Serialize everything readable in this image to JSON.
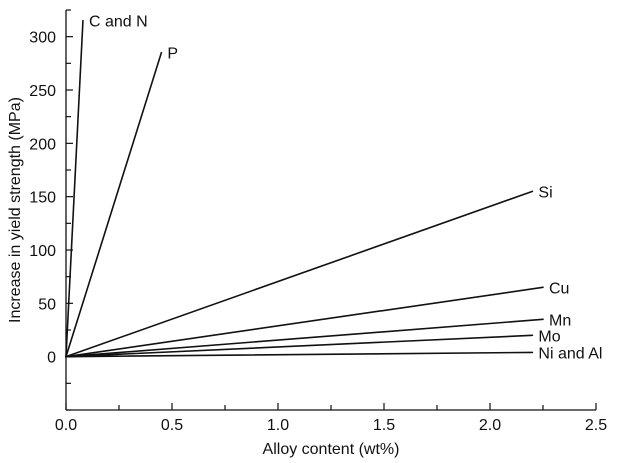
{
  "chart_data": {
    "type": "line",
    "title": "",
    "xlabel": "Alloy content (wt%)",
    "ylabel": "Increase in yield strength (MPa)",
    "xlim": [
      0,
      2.5
    ],
    "ylim": [
      -50,
      325
    ],
    "x_ticks": [
      0.0,
      0.5,
      1.0,
      1.5,
      2.0,
      2.5
    ],
    "x_tick_labels": [
      "0.0",
      "0.5",
      "1.0",
      "1.5",
      "2.0",
      "2.5"
    ],
    "y_ticks": [
      0,
      50,
      100,
      150,
      200,
      250,
      300
    ],
    "y_tick_labels": [
      "0",
      "50",
      "100",
      "150",
      "200",
      "250",
      "300"
    ],
    "grid": false,
    "legend": "none (series labelled at line ends)",
    "line_color": "#111111",
    "series": [
      {
        "name": "C and N",
        "x": [
          0,
          0.08
        ],
        "y": [
          0,
          315
        ]
      },
      {
        "name": "P",
        "x": [
          0,
          0.45
        ],
        "y": [
          0,
          285
        ]
      },
      {
        "name": "Si",
        "x": [
          0,
          2.2
        ],
        "y": [
          0,
          155
        ]
      },
      {
        "name": "Cu",
        "x": [
          0,
          2.25
        ],
        "y": [
          0,
          65
        ]
      },
      {
        "name": "Mn",
        "x": [
          0,
          2.25
        ],
        "y": [
          0,
          35
        ]
      },
      {
        "name": "Mo",
        "x": [
          0,
          2.2
        ],
        "y": [
          0,
          20
        ]
      },
      {
        "name": "Ni and Al",
        "x": [
          0,
          2.2
        ],
        "y": [
          0,
          4
        ]
      }
    ]
  }
}
